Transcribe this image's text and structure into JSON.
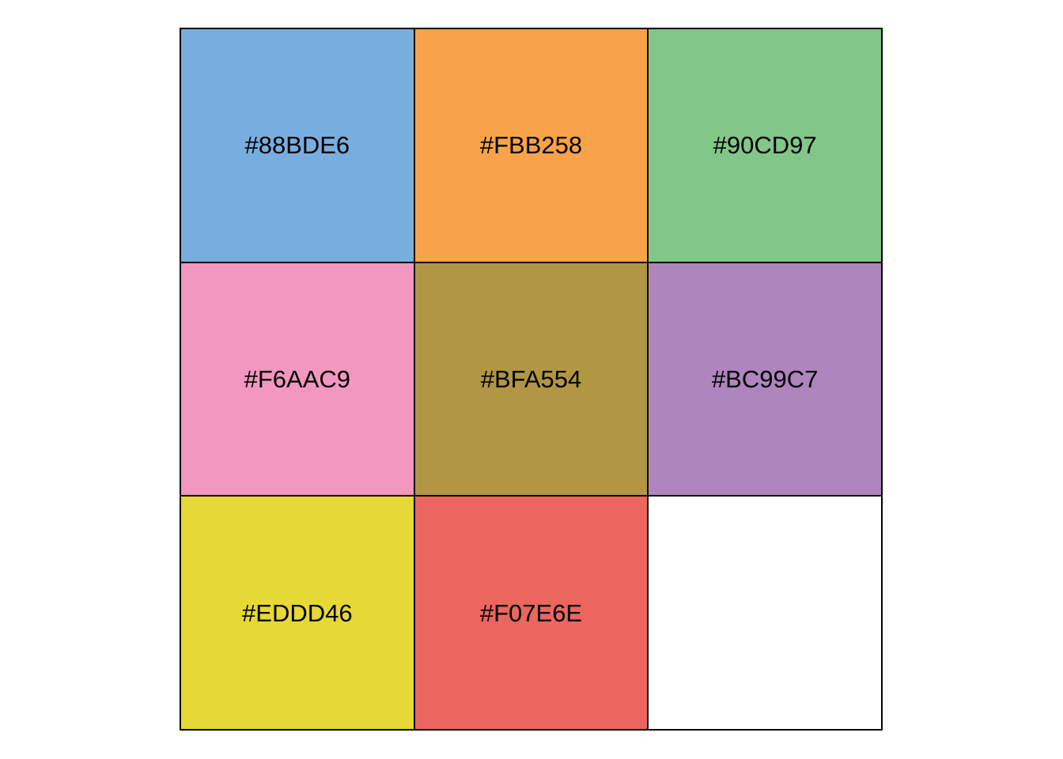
{
  "chart_data": {
    "type": "table",
    "title": "",
    "rows": 3,
    "columns": 3,
    "swatches": [
      {
        "label": "#88BDE6",
        "fill": "#78AEDF"
      },
      {
        "label": "#FBB258",
        "fill": "#F8A349"
      },
      {
        "label": "#90CD97",
        "fill": "#82C688"
      },
      {
        "label": "#F6AAC9",
        "fill": "#F197C0"
      },
      {
        "label": "#BFA554",
        "fill": "#B19643"
      },
      {
        "label": "#BC99C7",
        "fill": "#AE85BD"
      },
      {
        "label": "#EDDD46",
        "fill": "#E6D836"
      },
      {
        "label": "#F07E6E",
        "fill": "#EA665E"
      }
    ]
  }
}
